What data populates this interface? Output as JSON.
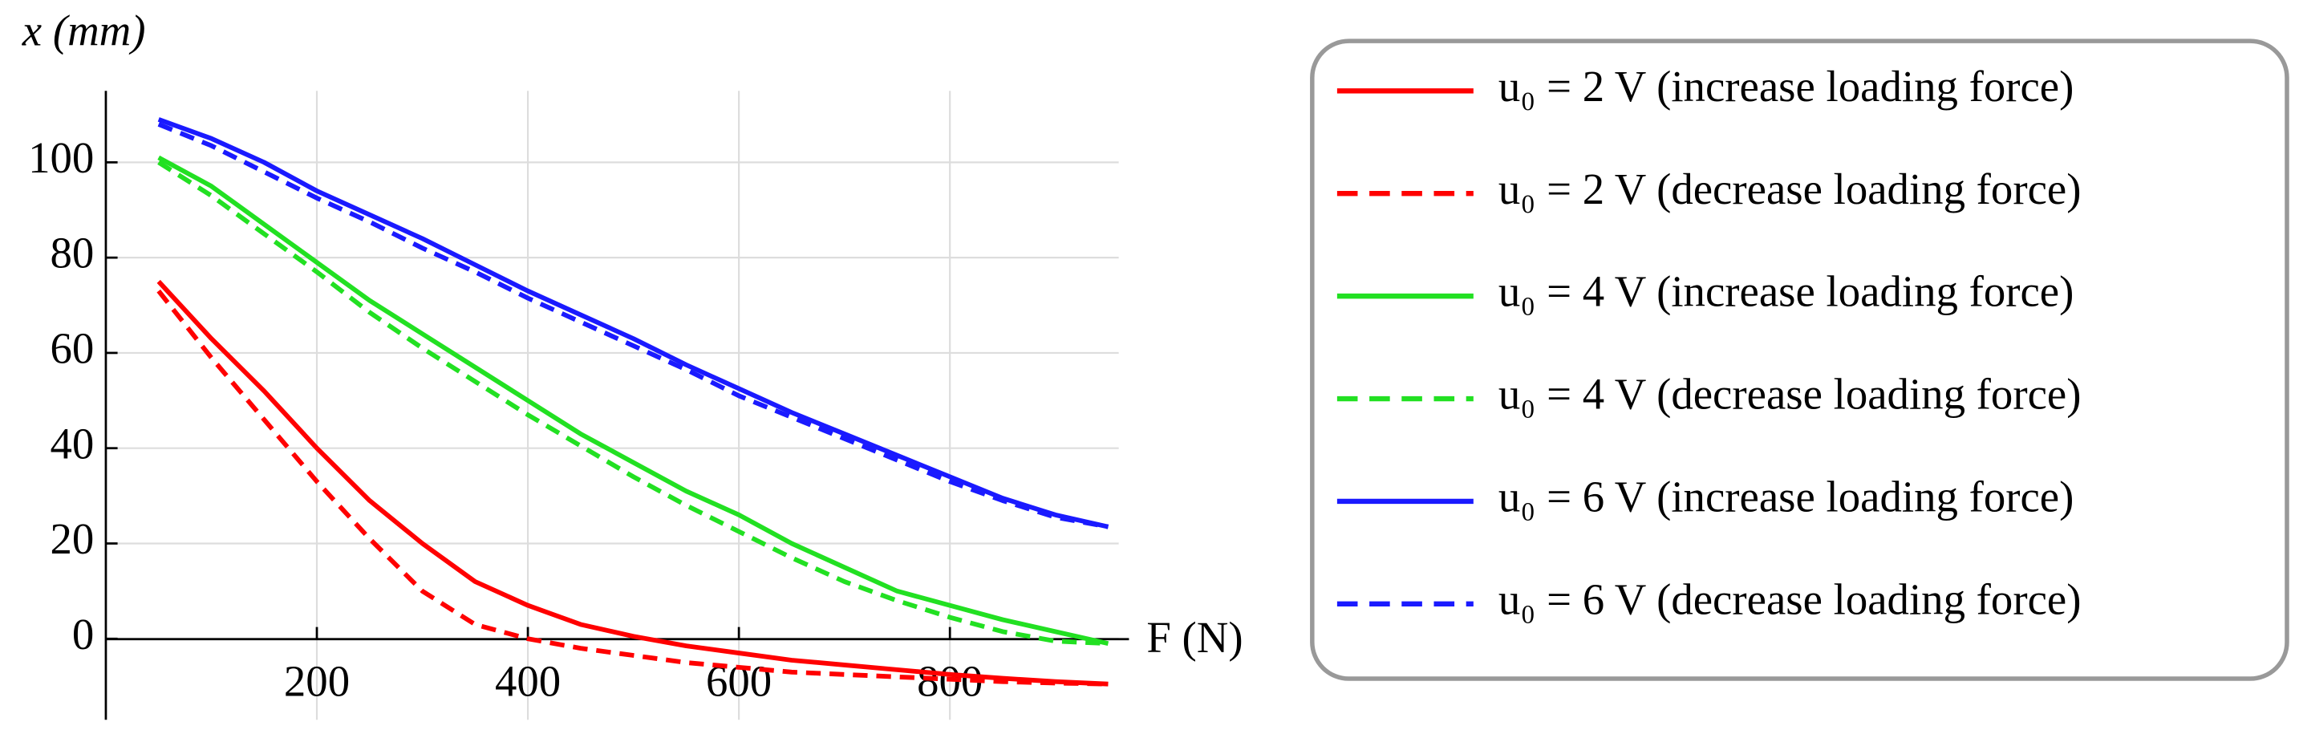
{
  "chart_data": {
    "type": "line",
    "y_label": "x (mm)",
    "x_label": "F (N)",
    "x": [
      50,
      100,
      150,
      200,
      250,
      300,
      350,
      400,
      450,
      500,
      550,
      600,
      650,
      700,
      750,
      800,
      850,
      900,
      950
    ],
    "series": [
      {
        "name": "u₀ = 2 V (increase loading force)",
        "color": "#ff0000",
        "dash": false,
        "values": [
          75,
          63,
          52,
          40,
          29,
          20,
          12,
          7,
          3,
          0.5,
          -1.5,
          -3,
          -4.5,
          -5.5,
          -6.5,
          -7.5,
          -8.3,
          -9,
          -9.5
        ]
      },
      {
        "name": "u₀ = 2 V (decrease loading force)",
        "color": "#ff0000",
        "dash": true,
        "values": [
          73,
          59,
          46,
          33,
          21,
          10,
          3,
          0,
          -2,
          -3.5,
          -5,
          -6,
          -7,
          -7.5,
          -8,
          -8.5,
          -9,
          -9.3,
          -9.5
        ]
      },
      {
        "name": "u₀ = 4 V (increase loading force)",
        "color": "#22e022",
        "dash": false,
        "values": [
          101,
          95,
          87,
          79,
          71,
          64,
          57,
          50,
          43,
          37,
          31,
          26,
          20,
          15,
          10,
          7,
          4,
          1.5,
          -1
        ]
      },
      {
        "name": "u₀ = 4 V (decrease loading force)",
        "color": "#22e022",
        "dash": true,
        "values": [
          100,
          93,
          85,
          77,
          68.5,
          61,
          54,
          47,
          40.5,
          34,
          28,
          22.5,
          17,
          12,
          8,
          4.5,
          1.5,
          -0.5,
          -1
        ]
      },
      {
        "name": "u₀ = 6 V (increase loading force)",
        "color": "#1a1aff",
        "dash": false,
        "values": [
          109,
          105,
          100,
          94,
          89,
          84,
          78.5,
          73,
          68,
          63,
          57.5,
          52.5,
          47.5,
          43,
          38.5,
          34,
          29.5,
          26,
          23.5
        ]
      },
      {
        "name": "u₀ = 6 V (decrease loading force)",
        "color": "#1a1aff",
        "dash": true,
        "values": [
          108,
          103.5,
          98,
          92.5,
          87.5,
          82,
          77,
          71.5,
          66.5,
          61.5,
          56.5,
          51,
          46.5,
          42,
          37.5,
          33,
          29,
          25.5,
          23.5
        ]
      }
    ],
    "xlim": [
      0,
      960
    ],
    "ylim": [
      -17,
      115
    ],
    "xticks": [
      200,
      400,
      600,
      800
    ],
    "yticks": [
      0,
      20,
      40,
      60,
      80,
      100
    ],
    "grid": true
  }
}
